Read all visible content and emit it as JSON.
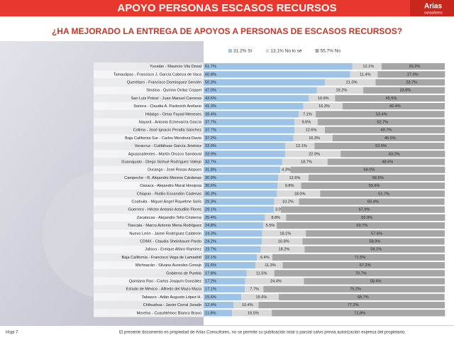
{
  "header": {
    "title": "APOYO PERSONAS ESCASOS RECURSOS",
    "logo": "Arias",
    "logo_sub": "consultores"
  },
  "chart_data": {
    "type": "stacked-bar-horizontal",
    "title": "¿HA MEJORADO LA ENTREGA DE APOYOS A PERSONAS DE ESCASOS RECURSOS?",
    "categories": [
      "Yucatán - Mauricio Vila Dosal",
      "Tamaulipas - Francisco J. García Cabeza de Vaca",
      "Querétaro - Francisco Domínguez Servién",
      "Sinaloa - Quirino Ordaz Coppel",
      "San Luis Potosí - Juan Manuel Carreras",
      "Sonora - Claudia A. Pavlovich Arellano",
      "Hidalgo - Omar Fayad Meneses",
      "Nayarit - Antonio Echevarría García",
      "Colima - José Ignacio Peralta Sánchez",
      "Baja California Sur - Carlos Mendoza Davis",
      "Veracruz - Cuitláhuac García Jiménez",
      "Aguascalientes - Martín Orozco Sandoval",
      "Guanajuato - Diego Sinhué Rodríguez Vallejo",
      "Durango - José Rosas Aispuro",
      "Campeche - R. Alejandro Moreno Cárdenas",
      "Oaxaca - Alejandro Murat Hinojosa",
      "Chiapas - Rutilio Escandón Cadenas",
      "Coahuila - Miguel Ángel Riquelme Solís",
      "Guerrero - Héctor Antonio Astudillo Flores",
      "Zacatecas - Alejandro Tello Cristerna",
      "Tlaxcala - Marco Antonio Mena Rodríguez",
      "Nuevo León - Jaime Rodríguez Calderón",
      "CDMX - Claudia Sheinbaum Pardo",
      "Jalisco - Enrique Alfaro Ramírez",
      "Baja California - Francisco Vega de Lamadrid",
      "Michoacán - Silvano Aureoles Conejo",
      "Gobierno de Puebla",
      "Quintana Roo - Carlos Joaquín González",
      "Estado de México - Alfredo del Mazo Maza",
      "Tabasco - Adán Augusto López H.",
      "Chihuahua - Javier Corral Jurado",
      "Morelos - Cuauhtémoc Blanco Bravo"
    ],
    "series": [
      {
        "name": "31.2% Sí",
        "color": "#9dc3e6",
        "values": [
          61.7,
          60.8,
          50.3,
          47.0,
          43.6,
          41.3,
          39.4,
          37.7,
          37.7,
          37.2,
          33.9,
          33.9,
          32.7,
          31.8,
          30.9,
          30.6,
          30.3,
          29.3,
          29.1,
          25.4,
          24.8,
          24.3,
          24.2,
          23.7,
          22.1,
          21.5,
          17.8,
          17.2,
          17.1,
          15.6,
          12.4,
          11.8
        ],
        "value_labels": [
          "61.7%",
          "60.8%",
          "50.3%",
          "47.0%",
          "43.6%",
          "41.3%",
          "39.4%",
          "37.7%",
          "37.7%",
          "37.2%",
          "33.9%",
          "33.9%",
          "32.7%",
          "31.8%",
          "30.9%",
          "30.6%",
          "30.3%",
          "29.3%",
          "29.1%",
          "25.4%",
          "24.8%",
          "24.3%",
          "24.2%",
          "23.7%",
          "22.1%",
          "21.5%",
          "17.8%",
          "17.2%",
          "17.1%",
          "15.6%",
          "12.4%",
          "11.8%"
        ]
      },
      {
        "name": "13.1% No lo sé",
        "color": "#d9d9d9",
        "values": [
          12.1,
          11.4,
          21.0,
          19.2,
          10.9,
          16.3,
          7.1,
          9.6,
          12.6,
          16.3,
          12.1,
          22.9,
          18.7,
          4.3,
          12.6,
          9.8,
          18.0,
          10.2,
          3.0,
          8.8,
          5.5,
          18.1,
          16.8,
          18.2,
          6.4,
          11.3,
          11.5,
          24.4,
          7.7,
          15.6,
          10.4,
          16.5
        ],
        "value_labels": [
          "12.1%",
          "11.4%",
          "21.0%",
          "19.2%",
          "10.9%",
          "16.3%",
          "7.1%",
          "9.6%",
          "12.6%",
          "16.3%",
          "12.1%",
          "22.9%",
          "18.7%",
          "4.3%",
          "12.6%",
          "9.8%",
          "18.0%",
          "10.2%",
          "3.0%",
          "8.8%",
          "5.5%",
          "18.1%",
          "16.8%",
          "18.2%",
          "6.4%",
          "11.3%",
          "11.5%",
          "24.4%",
          "7.7%",
          "15.6%",
          "10.4%",
          "16.5%"
        ]
      },
      {
        "name": "55.7% No",
        "color": "#a6a6a6",
        "values": [
          26.2,
          27.9,
          28.7,
          33.8,
          45.5,
          42.4,
          53.4,
          52.7,
          49.7,
          46.5,
          53.9,
          43.3,
          48.6,
          64.0,
          56.5,
          59.6,
          51.7,
          60.4,
          67.9,
          65.9,
          69.7,
          57.6,
          58.9,
          58.1,
          71.5,
          67.2,
          70.7,
          58.4,
          75.2,
          68.7,
          77.2,
          71.8
        ],
        "value_labels": [
          "26.2%",
          "27.9%",
          "28.7%",
          "33.8%",
          "45.5%",
          "42.4%",
          "53.4%",
          "52.7%",
          "49.7%",
          "46.5%",
          "53.9%",
          "43.3%",
          "48.6%",
          "64.0%",
          "56.5%",
          "59.6%",
          "51.7%",
          "60.4%",
          "67.9%",
          "65.9%",
          "69.7%",
          "57.6%",
          "58.9%",
          "58.1%",
          "71.5%",
          "67.2%",
          "70.7%",
          "58.4%",
          "75.2%",
          "68.7%",
          "77.2%",
          "71.8%"
        ]
      }
    ],
    "xlim": [
      0,
      100
    ]
  },
  "footer": {
    "page": "Hoja 7",
    "note": "El presente documento es propiedad de Arias Consultores, no se permite su publicación total o parcial salvo previa autorización expresa del propietario."
  }
}
